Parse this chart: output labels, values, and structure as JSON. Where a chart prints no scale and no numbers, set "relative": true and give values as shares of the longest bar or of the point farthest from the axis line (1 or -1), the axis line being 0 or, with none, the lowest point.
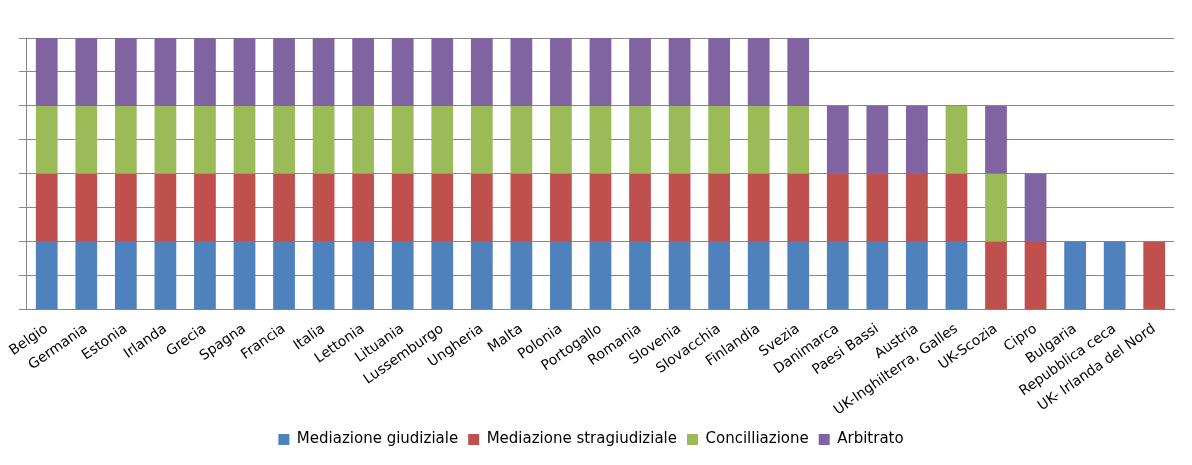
{
  "chart_data": {
    "type": "bar",
    "stacked": true,
    "relative": true,
    "grid": "y",
    "legend": "bottom",
    "categories": [
      "Belgio",
      "Germania",
      "Estonia",
      "Irlanda",
      "Grecia",
      "Spagna",
      "Francia",
      "Italia",
      "Lettonia",
      "Lituania",
      "Lussemburgo",
      "Ungheria",
      "Malta",
      "Polonia",
      "Portogallo",
      "Romania",
      "Slovenia",
      "Slovacchia",
      "Finlandia",
      "Svezia",
      "Danimarca",
      "Paesi Bassi",
      "Austria",
      "UK-Inghilterra, Galles",
      "UK-Scozia",
      "Cipro",
      "Bulgaria",
      "Repubblica ceca",
      "UK- Irlanda del Nord"
    ],
    "series": [
      {
        "name": "Mediazione giudiziale",
        "color": "#4f81bd",
        "values": [
          0.25,
          0.25,
          0.25,
          0.25,
          0.25,
          0.25,
          0.25,
          0.25,
          0.25,
          0.25,
          0.25,
          0.25,
          0.25,
          0.25,
          0.25,
          0.25,
          0.25,
          0.25,
          0.25,
          0.25,
          0.25,
          0.25,
          0.25,
          0.25,
          null,
          null,
          0.25,
          0.25,
          null
        ]
      },
      {
        "name": "Mediazione stragiudiziale",
        "color": "#c0504d",
        "values": [
          0.25,
          0.25,
          0.25,
          0.25,
          0.25,
          0.25,
          0.25,
          0.25,
          0.25,
          0.25,
          0.25,
          0.25,
          0.25,
          0.25,
          0.25,
          0.25,
          0.25,
          0.25,
          0.25,
          0.25,
          0.25,
          0.25,
          0.25,
          0.25,
          0.25,
          0.25,
          null,
          null,
          0.25
        ]
      },
      {
        "name": "Concilliazione",
        "color": "#9bbb59",
        "values": [
          0.25,
          0.25,
          0.25,
          0.25,
          0.25,
          0.25,
          0.25,
          0.25,
          0.25,
          0.25,
          0.25,
          0.25,
          0.25,
          0.25,
          0.25,
          0.25,
          0.25,
          0.25,
          0.25,
          0.25,
          null,
          null,
          null,
          0.25,
          0.25,
          null,
          null,
          null,
          null
        ]
      },
      {
        "name": "Arbitrato",
        "color": "#8064a2",
        "values": [
          0.25,
          0.25,
          0.25,
          0.25,
          0.25,
          0.25,
          0.25,
          0.25,
          0.25,
          0.25,
          0.25,
          0.25,
          0.25,
          0.25,
          0.25,
          0.25,
          0.25,
          0.25,
          0.25,
          0.25,
          0.25,
          0.25,
          0.25,
          null,
          0.25,
          0.25,
          null,
          null,
          null
        ]
      }
    ]
  }
}
